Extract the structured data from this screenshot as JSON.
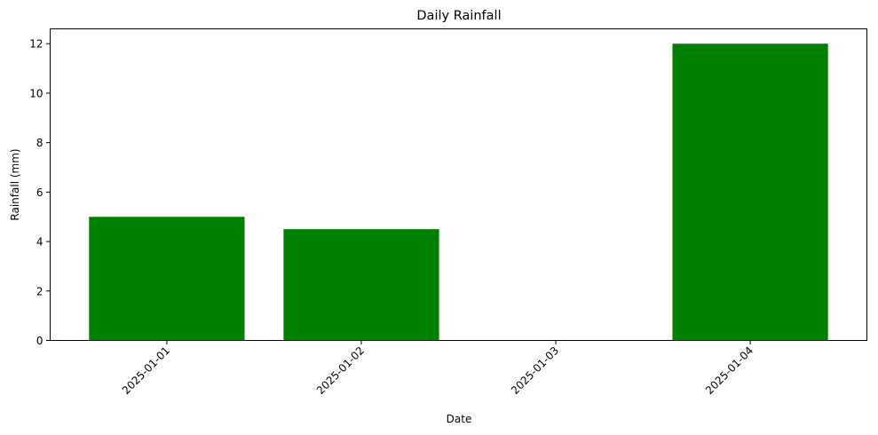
{
  "chart_data": {
    "type": "bar",
    "title": "Daily Rainfall",
    "xlabel": "Date",
    "ylabel": "Rainfall (mm)",
    "categories": [
      "2025-01-01",
      "2025-01-02",
      "2025-01-03",
      "2025-01-04"
    ],
    "values": [
      5.0,
      4.5,
      0.0,
      12.0
    ],
    "ylim": [
      0,
      12.6
    ],
    "yticks": [
      0,
      2,
      4,
      6,
      8,
      10,
      12
    ],
    "bar_color": "#008000",
    "grid": false,
    "legend": "none"
  }
}
